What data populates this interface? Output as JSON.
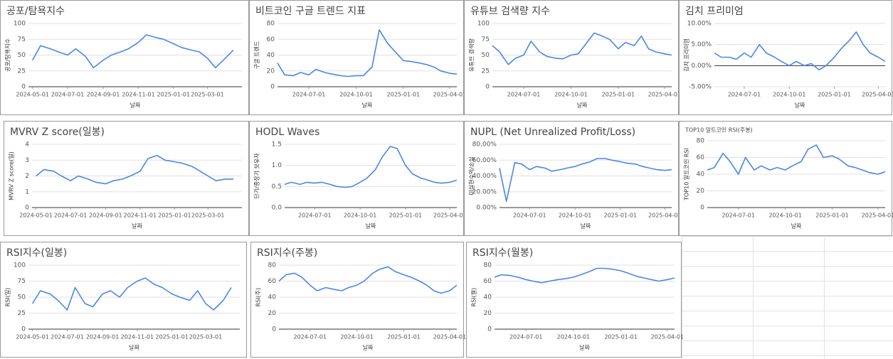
{
  "chart_data": [
    {
      "type": "line",
      "title": "공포/탐욕지수",
      "x_label": "날짜",
      "y_label": "공포/탐욕지수",
      "color": "#4a86e8",
      "grid": true,
      "x": [
        "2024-05-01",
        "2024-05-15",
        "2024-06-01",
        "2024-06-15",
        "2024-07-01",
        "2024-07-15",
        "2024-08-01",
        "2024-08-15",
        "2024-09-01",
        "2024-09-15",
        "2024-10-01",
        "2024-10-15",
        "2024-11-01",
        "2024-11-15",
        "2024-12-01",
        "2024-12-15",
        "2025-01-01",
        "2025-01-15",
        "2025-02-01",
        "2025-02-15",
        "2025-03-01",
        "2025-03-15",
        "2025-04-01",
        "2025-04-15"
      ],
      "values": [
        42,
        65,
        60,
        55,
        50,
        60,
        48,
        30,
        42,
        50,
        55,
        60,
        70,
        82,
        78,
        75,
        68,
        62,
        58,
        55,
        45,
        30,
        45,
        58
      ],
      "xlim": [
        "2024-04-24",
        "2025-04-30"
      ],
      "xticks": [
        "2024-05-01",
        "2024-07-01",
        "2024-09-01",
        "2024-11-01",
        "2025-01-01",
        "2025-03-01"
      ],
      "ylim": [
        0,
        100
      ],
      "yticks": [
        0,
        25,
        50,
        75,
        100
      ]
    },
    {
      "type": "line",
      "title": "비트코인 구글 트렌드 지표",
      "x_label": "날짜",
      "y_label": "구글 트렌드",
      "color": "#4a86e8",
      "grid": true,
      "x": [
        "2024-05-01",
        "2024-05-15",
        "2024-06-01",
        "2024-06-15",
        "2024-07-01",
        "2024-07-15",
        "2024-08-01",
        "2024-08-15",
        "2024-09-01",
        "2024-09-15",
        "2024-10-01",
        "2024-10-15",
        "2024-11-01",
        "2024-11-15",
        "2024-12-01",
        "2024-12-15",
        "2025-01-01",
        "2025-01-15",
        "2025-02-01",
        "2025-02-15",
        "2025-03-01",
        "2025-03-15",
        "2025-04-01",
        "2025-04-15"
      ],
      "values": [
        30,
        15,
        14,
        18,
        15,
        22,
        18,
        16,
        14,
        13,
        14,
        14,
        25,
        72,
        55,
        45,
        33,
        32,
        30,
        28,
        25,
        20,
        17,
        16
      ],
      "xlim": [
        "2024-05-01",
        "2025-04-15"
      ],
      "xticks": [
        "2024-07-01",
        "2024-10-01",
        "2025-01-01",
        "2025-04-01"
      ],
      "ylim": [
        0,
        80
      ],
      "yticks": [
        0,
        20,
        40,
        60,
        80
      ]
    },
    {
      "type": "line",
      "title": "유튜브 검색량 지수",
      "x_label": "날짜",
      "y_label": "유튜브 검색량",
      "color": "#4a86e8",
      "grid": true,
      "x": [
        "2024-05-01",
        "2024-05-15",
        "2024-06-01",
        "2024-06-15",
        "2024-07-01",
        "2024-07-15",
        "2024-08-01",
        "2024-08-15",
        "2024-09-01",
        "2024-09-15",
        "2024-10-01",
        "2024-10-15",
        "2024-11-01",
        "2024-11-15",
        "2024-12-01",
        "2024-12-15",
        "2025-01-01",
        "2025-01-15",
        "2025-02-01",
        "2025-02-15",
        "2025-03-01",
        "2025-03-15",
        "2025-04-01",
        "2025-04-15"
      ],
      "values": [
        65,
        55,
        35,
        45,
        50,
        72,
        55,
        48,
        45,
        44,
        50,
        52,
        70,
        85,
        80,
        75,
        60,
        70,
        65,
        80,
        60,
        55,
        52,
        50
      ],
      "xlim": [
        "2024-05-01",
        "2025-04-15"
      ],
      "xticks": [
        "2024-07-01",
        "2024-10-01",
        "2025-01-01",
        "2025-04-01"
      ],
      "ylim": [
        0,
        100
      ],
      "yticks": [
        0,
        25,
        50,
        75,
        100
      ]
    },
    {
      "type": "line",
      "title": "김치 프리미엄",
      "x_label": "날짜",
      "y_label": "김치 프리미엄",
      "color": "#4a86e8",
      "grid": true,
      "x": [
        "2024-05-01",
        "2024-05-15",
        "2024-06-01",
        "2024-06-15",
        "2024-07-01",
        "2024-07-15",
        "2024-08-01",
        "2024-08-15",
        "2024-09-01",
        "2024-09-15",
        "2024-10-01",
        "2024-10-15",
        "2024-11-01",
        "2024-11-15",
        "2024-12-01",
        "2024-12-15",
        "2025-01-01",
        "2025-01-15",
        "2025-02-01",
        "2025-02-15",
        "2025-03-01",
        "2025-03-15",
        "2025-04-01",
        "2025-04-15"
      ],
      "values": [
        3,
        2,
        2,
        1.5,
        3,
        2,
        5,
        3,
        2,
        1,
        0,
        1,
        0,
        0.5,
        -1,
        0,
        2,
        4,
        6,
        8,
        5,
        3,
        2,
        1
      ],
      "xlim": [
        "2024-05-01",
        "2025-04-15"
      ],
      "xticks": [
        "2024-07-01",
        "2024-10-01",
        "2025-01-01",
        "2025-04-01"
      ],
      "ylim": [
        -5,
        10
      ],
      "yticks": [
        {
          "value": -5,
          "label": "-5.00%"
        },
        {
          "value": 0,
          "label": "0.00%"
        },
        {
          "value": 5,
          "label": "5.00%"
        },
        {
          "value": 10,
          "label": "10.00%"
        }
      ]
    },
    {
      "type": "line",
      "title": "MVRV Z score(일봉)",
      "x_label": "날짜",
      "y_label": "MVRV Z score(일)",
      "color": "#4a86e8",
      "grid": true,
      "x": [
        "2024-05-01",
        "2024-05-15",
        "2024-06-01",
        "2024-06-15",
        "2024-07-01",
        "2024-07-15",
        "2024-08-01",
        "2024-08-15",
        "2024-09-01",
        "2024-09-15",
        "2024-10-01",
        "2024-10-15",
        "2024-11-01",
        "2024-11-15",
        "2024-12-01",
        "2024-12-15",
        "2025-01-01",
        "2025-01-15",
        "2025-02-01",
        "2025-02-15",
        "2025-03-01",
        "2025-03-15",
        "2025-04-01",
        "2025-04-15"
      ],
      "values": [
        2.0,
        2.4,
        2.3,
        2.0,
        1.7,
        2.0,
        1.8,
        1.6,
        1.5,
        1.7,
        1.8,
        2.0,
        2.3,
        3.1,
        3.3,
        3.0,
        2.9,
        2.8,
        2.6,
        2.3,
        2.0,
        1.7,
        1.8,
        1.8
      ],
      "xlim": [
        "2024-04-24",
        "2025-04-30"
      ],
      "xticks": [
        "2024-05-01",
        "2024-07-01",
        "2024-09-01",
        "2024-11-01",
        "2025-01-01",
        "2025-03-01"
      ],
      "ylim": [
        0,
        4
      ],
      "yticks": [
        0,
        1,
        2,
        3,
        4
      ]
    },
    {
      "type": "line",
      "title": "HODL Waves",
      "x_label": "날짜",
      "y_label": "단기/중장기 보유자",
      "color": "#4a86e8",
      "grid": true,
      "x": [
        "2024-05-01",
        "2024-05-15",
        "2024-06-01",
        "2024-06-15",
        "2024-07-01",
        "2024-07-15",
        "2024-08-01",
        "2024-08-15",
        "2024-09-01",
        "2024-09-15",
        "2024-10-01",
        "2024-10-15",
        "2024-11-01",
        "2024-11-15",
        "2024-12-01",
        "2024-12-15",
        "2025-01-01",
        "2025-01-15",
        "2025-02-01",
        "2025-02-15",
        "2025-03-01",
        "2025-03-15",
        "2025-04-01",
        "2025-04-15"
      ],
      "values": [
        0.55,
        0.6,
        0.55,
        0.6,
        0.58,
        0.6,
        0.55,
        0.5,
        0.48,
        0.5,
        0.6,
        0.7,
        0.9,
        1.2,
        1.45,
        1.4,
        1.0,
        0.8,
        0.7,
        0.65,
        0.6,
        0.58,
        0.6,
        0.65
      ],
      "xlim": [
        "2024-05-01",
        "2025-04-15"
      ],
      "xticks": [
        "2024-07-01",
        "2024-10-01",
        "2025-01-01",
        "2025-04-01"
      ],
      "ylim": [
        0,
        1.5
      ],
      "yticks": [
        {
          "value": 0,
          "label": "0.0"
        },
        {
          "value": 0.5,
          "label": "0.5"
        },
        {
          "value": 1,
          "label": "1.0"
        },
        {
          "value": 1.5,
          "label": "1.5"
        }
      ]
    },
    {
      "type": "line",
      "title": "NUPL (Net Unrealized Profit/Loss)",
      "x_label": "날짜",
      "y_label": "미실현수익/손실",
      "color": "#4a86e8",
      "grid": true,
      "x": [
        "2024-05-01",
        "2024-05-15",
        "2024-06-01",
        "2024-06-15",
        "2024-07-01",
        "2024-07-15",
        "2024-08-01",
        "2024-08-15",
        "2024-09-01",
        "2024-09-15",
        "2024-10-01",
        "2024-10-15",
        "2024-11-01",
        "2024-11-15",
        "2024-12-01",
        "2024-12-15",
        "2025-01-01",
        "2025-01-15",
        "2025-02-01",
        "2025-02-15",
        "2025-03-01",
        "2025-03-15",
        "2025-04-01",
        "2025-04-15"
      ],
      "values": [
        50,
        8,
        57,
        55,
        48,
        52,
        50,
        46,
        48,
        50,
        52,
        55,
        58,
        62,
        62,
        60,
        58,
        56,
        55,
        52,
        50,
        48,
        47,
        48
      ],
      "xlim": [
        "2024-05-01",
        "2025-04-15"
      ],
      "xticks": [
        "2024-07-01",
        "2024-10-01",
        "2025-01-01",
        "2025-04-01"
      ],
      "ylim": [
        0,
        80
      ],
      "yticks": [
        {
          "value": 0,
          "label": "0.00%"
        },
        {
          "value": 20,
          "label": "20.00%"
        },
        {
          "value": 40,
          "label": "40.00%"
        },
        {
          "value": 60,
          "label": "60.00%"
        },
        {
          "value": 80,
          "label": "80.00%"
        }
      ]
    },
    {
      "type": "line",
      "title": "TOP10 알트코인 RSI(주봉)",
      "x_label": "날짜",
      "y_label": "TOP10 알트코인 RSI",
      "color": "#4a86e8",
      "grid": true,
      "x": [
        "2024-05-01",
        "2024-05-15",
        "2024-06-01",
        "2024-06-15",
        "2024-07-01",
        "2024-07-15",
        "2024-08-01",
        "2024-08-15",
        "2024-09-01",
        "2024-09-15",
        "2024-10-01",
        "2024-10-15",
        "2024-11-01",
        "2024-11-15",
        "2024-12-01",
        "2024-12-15",
        "2025-01-01",
        "2025-01-15",
        "2025-02-01",
        "2025-02-15",
        "2025-03-01",
        "2025-03-15",
        "2025-04-01",
        "2025-04-15"
      ],
      "values": [
        45,
        48,
        65,
        55,
        40,
        60,
        45,
        50,
        45,
        48,
        45,
        50,
        55,
        70,
        75,
        60,
        62,
        58,
        50,
        48,
        45,
        42,
        40,
        43
      ],
      "xlim": [
        "2024-05-01",
        "2025-04-15"
      ],
      "xticks": [
        "2024-07-01",
        "2024-10-01",
        "2025-01-01",
        "2025-04-01"
      ],
      "ylim": [
        0,
        80
      ],
      "yticks": [
        0,
        20,
        40,
        60,
        80
      ]
    },
    {
      "type": "line",
      "title": "RSI지수(일봉)",
      "x_label": "날짜",
      "y_label": "RSI(일)",
      "color": "#4a86e8",
      "grid": true,
      "x": [
        "2024-05-01",
        "2024-05-15",
        "2024-06-01",
        "2024-06-15",
        "2024-07-01",
        "2024-07-15",
        "2024-08-01",
        "2024-08-15",
        "2024-09-01",
        "2024-09-15",
        "2024-10-01",
        "2024-10-15",
        "2024-11-01",
        "2024-11-15",
        "2024-12-01",
        "2024-12-15",
        "2025-01-01",
        "2025-01-15",
        "2025-02-01",
        "2025-02-15",
        "2025-03-01",
        "2025-03-15",
        "2025-04-01",
        "2025-04-15"
      ],
      "values": [
        40,
        60,
        55,
        45,
        30,
        65,
        40,
        35,
        55,
        60,
        50,
        65,
        75,
        80,
        70,
        65,
        55,
        50,
        45,
        60,
        40,
        30,
        45,
        65
      ],
      "xlim": [
        "2024-04-24",
        "2025-04-30"
      ],
      "xticks": [
        "2024-05-01",
        "2024-07-01",
        "2024-09-01",
        "2024-11-01",
        "2025-01-01",
        "2025-03-01"
      ],
      "ylim": [
        0,
        100
      ],
      "yticks": [
        0,
        25,
        50,
        75,
        100
      ]
    },
    {
      "type": "line",
      "title": "RSI지수(주봉)",
      "x_label": "날짜",
      "y_label": "RSI(주)",
      "color": "#4a86e8",
      "grid": true,
      "x": [
        "2024-05-01",
        "2024-05-15",
        "2024-06-01",
        "2024-06-15",
        "2024-07-01",
        "2024-07-15",
        "2024-08-01",
        "2024-08-15",
        "2024-09-01",
        "2024-09-15",
        "2024-10-01",
        "2024-10-15",
        "2024-11-01",
        "2024-11-15",
        "2024-12-01",
        "2024-12-15",
        "2025-01-01",
        "2025-01-15",
        "2025-02-01",
        "2025-02-15",
        "2025-03-01",
        "2025-03-15",
        "2025-04-01",
        "2025-04-15"
      ],
      "values": [
        60,
        68,
        70,
        65,
        55,
        48,
        52,
        50,
        48,
        52,
        55,
        60,
        70,
        75,
        78,
        72,
        68,
        65,
        60,
        55,
        48,
        45,
        48,
        55
      ],
      "xlim": [
        "2024-05-01",
        "2025-04-15"
      ],
      "xticks": [
        "2024-07-01",
        "2024-10-01",
        "2025-01-01",
        "2025-04-01"
      ],
      "ylim": [
        0,
        80
      ],
      "yticks": [
        0,
        20,
        40,
        60,
        80
      ]
    },
    {
      "type": "line",
      "title": "RSI지수(월봉)",
      "x_label": "날짜",
      "y_label": "RSI(월)",
      "color": "#4a86e8",
      "grid": true,
      "x": [
        "2024-05-01",
        "2024-05-15",
        "2024-06-01",
        "2024-06-15",
        "2024-07-01",
        "2024-07-15",
        "2024-08-01",
        "2024-08-15",
        "2024-09-01",
        "2024-09-15",
        "2024-10-01",
        "2024-10-15",
        "2024-11-01",
        "2024-11-15",
        "2024-12-01",
        "2024-12-15",
        "2025-01-01",
        "2025-01-15",
        "2025-02-01",
        "2025-02-15",
        "2025-03-01",
        "2025-03-15",
        "2025-04-01",
        "2025-04-15"
      ],
      "values": [
        65,
        68,
        67,
        65,
        62,
        60,
        58,
        60,
        62,
        63,
        65,
        68,
        72,
        76,
        76,
        75,
        73,
        70,
        66,
        64,
        62,
        60,
        62,
        64
      ],
      "xlim": [
        "2024-05-01",
        "2025-04-15"
      ],
      "xticks": [
        "2024-07-01",
        "2024-10-01",
        "2025-01-01",
        "2025-04-01"
      ],
      "ylim": [
        0,
        80
      ],
      "yticks": [
        0,
        20,
        40,
        60,
        80
      ]
    }
  ]
}
